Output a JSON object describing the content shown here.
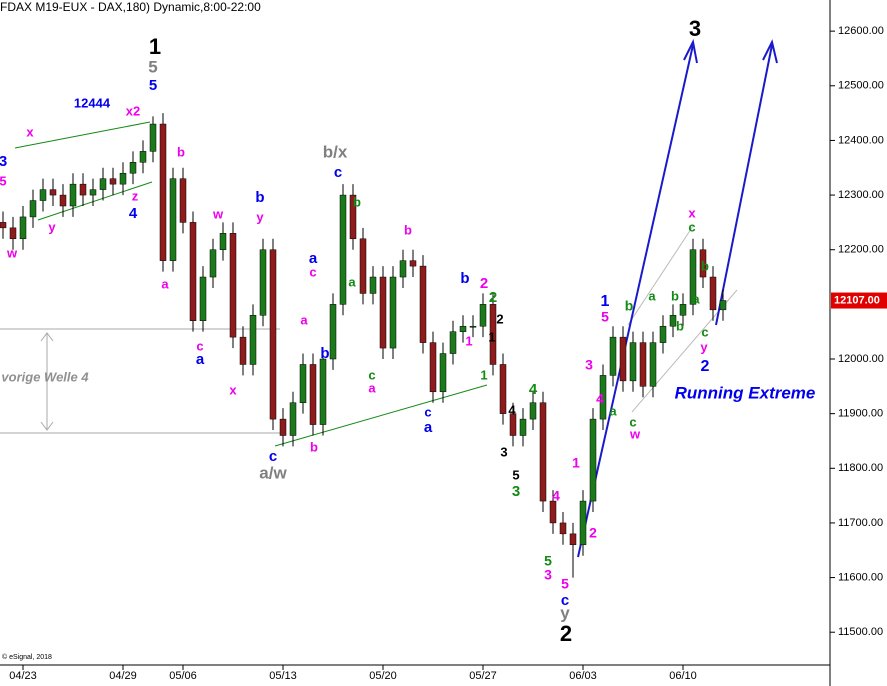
{
  "chart_data": {
    "type": "candlestick",
    "title": "(FDAX M19-EUX - DAX,180) Dynamic,8:00-22:00",
    "source": "© eSignal, 2018",
    "categories": [
      null,
      null,
      "04/23",
      null,
      null,
      null,
      null,
      null,
      null,
      null,
      null,
      null,
      "04/29",
      null,
      null,
      null,
      null,
      null,
      "05/06",
      null,
      null,
      null,
      null,
      null,
      null,
      null,
      null,
      null,
      "05/13",
      null,
      null,
      null,
      null,
      null,
      null,
      null,
      null,
      null,
      "05/20",
      null,
      null,
      null,
      null,
      null,
      null,
      null,
      null,
      null,
      "05/27",
      null,
      null,
      null,
      null,
      null,
      null,
      null,
      null,
      null,
      "06/03",
      null,
      null,
      null,
      null,
      null,
      null,
      null,
      null,
      null,
      "06/10",
      null,
      null,
      null,
      null
    ],
    "open": [
      12250,
      12240,
      12220,
      12260,
      12290,
      12310,
      12300,
      12280,
      12320,
      12300,
      12310,
      12330,
      12320,
      12340,
      12360,
      12380,
      12430,
      12180,
      12330,
      12250,
      12070,
      12150,
      12200,
      12230,
      12040,
      11990,
      12080,
      12200,
      11890,
      11860,
      11920,
      11990,
      11880,
      12000,
      12100,
      12300,
      12220,
      12120,
      12150,
      12020,
      12150,
      12180,
      12170,
      12030,
      11940,
      12010,
      12050,
      12060,
      12060,
      12100,
      11990,
      11900,
      11860,
      11890,
      11920,
      11740,
      11700,
      11680,
      11660,
      11740,
      11890,
      11970,
      12040,
      11960,
      12030,
      11950,
      12030,
      12060,
      12080,
      12100,
      12200,
      12150,
      12090
    ],
    "high": [
      12270,
      12260,
      12280,
      12310,
      12330,
      12330,
      12320,
      12340,
      12340,
      12330,
      12350,
      12350,
      12360,
      12380,
      12400,
      12444,
      12450,
      12350,
      12350,
      12270,
      12170,
      12220,
      12250,
      12250,
      12060,
      12100,
      12220,
      12220,
      11910,
      11940,
      12010,
      12010,
      12020,
      12120,
      12320,
      12320,
      12240,
      12170,
      12170,
      12170,
      12200,
      12200,
      12190,
      12050,
      12030,
      12070,
      12080,
      12080,
      12120,
      12120,
      12010,
      11920,
      11910,
      11940,
      11940,
      11760,
      11720,
      11700,
      11760,
      11910,
      11990,
      12060,
      12060,
      12050,
      12050,
      12050,
      12080,
      12100,
      12120,
      12220,
      12220,
      12170,
      12127
    ],
    "low": [
      12220,
      12200,
      12200,
      12240,
      12270,
      12280,
      12260,
      12260,
      12280,
      12280,
      12290,
      12300,
      12300,
      12320,
      12340,
      12360,
      12160,
      12160,
      12230,
      12050,
      12050,
      12130,
      12180,
      12020,
      11970,
      11970,
      12060,
      11870,
      11840,
      11840,
      11900,
      11860,
      11860,
      11980,
      12080,
      12200,
      12100,
      12100,
      12000,
      12000,
      12130,
      12150,
      12010,
      11920,
      11920,
      11990,
      12030,
      12040,
      12040,
      11970,
      11880,
      11840,
      11840,
      11870,
      11720,
      11680,
      11660,
      11600,
      11640,
      11720,
      11870,
      11950,
      11940,
      11940,
      11930,
      11930,
      12010,
      12040,
      12060,
      12080,
      12130,
      12070,
      12070
    ],
    "close": [
      12240,
      12220,
      12260,
      12290,
      12310,
      12300,
      12280,
      12320,
      12300,
      12310,
      12330,
      12320,
      12340,
      12360,
      12380,
      12430,
      12180,
      12330,
      12250,
      12070,
      12150,
      12200,
      12230,
      12040,
      11990,
      12080,
      12200,
      11890,
      11860,
      11920,
      11990,
      11880,
      12000,
      12100,
      12300,
      12220,
      12120,
      12150,
      12020,
      12150,
      12180,
      12170,
      12030,
      11940,
      12010,
      12050,
      12060,
      12060,
      12100,
      11990,
      11900,
      11860,
      11890,
      11920,
      11740,
      11700,
      11680,
      11660,
      11740,
      11890,
      11970,
      12040,
      11960,
      12030,
      11950,
      12030,
      12060,
      12080,
      12100,
      12200,
      12150,
      12090,
      12107
    ],
    "up_color": "#1c7a1c",
    "down_color": "#8e1c1c",
    "ylim": [
      11440,
      12657
    ],
    "yticks": [
      {
        "value": 12600,
        "label": "12600.00"
      },
      {
        "value": 12500,
        "label": "12500.00"
      },
      {
        "value": 12400,
        "label": "12400.00"
      },
      {
        "value": 12300,
        "label": "12300.00"
      },
      {
        "value": 12200,
        "label": "12200.00"
      },
      {
        "value": 12000,
        "label": "12000.00"
      },
      {
        "value": 11900,
        "label": "11900.00"
      },
      {
        "value": 11800,
        "label": "11800.00"
      },
      {
        "value": 11700,
        "label": "11700.00"
      },
      {
        "value": 11600,
        "label": "11600.00"
      },
      {
        "value": 11500,
        "label": "11500.00"
      }
    ],
    "last_price": {
      "value": 12107,
      "label": "12107.00",
      "color": "#e00000"
    },
    "annotations": [
      {
        "text": "1",
        "color": "#000000"
      },
      {
        "text": "5",
        "color": "#808080"
      },
      {
        "text": "5",
        "color": "#0000ee"
      },
      {
        "text": "12444",
        "color": "#0000ee"
      },
      {
        "text": "x2",
        "color": "#ee00ee"
      },
      {
        "text": "x",
        "color": "#ee00ee"
      },
      {
        "text": "3",
        "color": "#0000ee"
      },
      {
        "text": "5",
        "color": "#ee00ee"
      },
      {
        "text": "z",
        "color": "#ee00ee"
      },
      {
        "text": "4",
        "color": "#0000ee"
      },
      {
        "text": "y",
        "color": "#ee00ee"
      },
      {
        "text": "w",
        "color": "#ee00ee"
      },
      {
        "text": "b",
        "color": "#ee00ee"
      },
      {
        "text": "w",
        "color": "#ee00ee"
      },
      {
        "text": "b",
        "color": "#0000ee"
      },
      {
        "text": "y",
        "color": "#ee00ee"
      },
      {
        "text": "a",
        "color": "#ee00ee"
      },
      {
        "text": "c",
        "color": "#ee00ee"
      },
      {
        "text": "a",
        "color": "#0000ee"
      },
      {
        "text": "x",
        "color": "#ee00ee"
      },
      {
        "text": "b/x",
        "color": "#808080"
      },
      {
        "text": "c",
        "color": "#0000ee"
      },
      {
        "text": "b",
        "color": "#138a13"
      },
      {
        "text": "a",
        "color": "#0000ee"
      },
      {
        "text": "c",
        "color": "#ee00ee"
      },
      {
        "text": "a",
        "color": "#ee00ee"
      },
      {
        "text": "b",
        "color": "#0000ee"
      },
      {
        "text": "a",
        "color": "#138a13"
      },
      {
        "text": "b",
        "color": "#ee00ee"
      },
      {
        "text": "c",
        "color": "#138a13"
      },
      {
        "text": "a",
        "color": "#ee00ee"
      },
      {
        "text": "b",
        "color": "#0000ee"
      },
      {
        "text": "2",
        "color": "#ee00ee"
      },
      {
        "text": "2",
        "color": "#138a13"
      },
      {
        "text": "2",
        "color": "#000000"
      },
      {
        "text": "1",
        "color": "#ee00ee"
      },
      {
        "text": "1",
        "color": "#000000"
      },
      {
        "text": "1",
        "color": "#138a13"
      },
      {
        "text": "4",
        "color": "#138a13"
      },
      {
        "text": "4",
        "color": "#000000"
      },
      {
        "text": "c",
        "color": "#0000ee"
      },
      {
        "text": "a",
        "color": "#0000ee"
      },
      {
        "text": "3",
        "color": "#000000"
      },
      {
        "text": "5",
        "color": "#000000"
      },
      {
        "text": "3",
        "color": "#138a13"
      },
      {
        "text": "c",
        "color": "#0000ee"
      },
      {
        "text": "a/w",
        "color": "#808080"
      },
      {
        "text": "b",
        "color": "#ee00ee"
      },
      {
        "text": "1",
        "color": "#ee00ee"
      },
      {
        "text": "4",
        "color": "#ee00ee"
      },
      {
        "text": "2",
        "color": "#ee00ee"
      },
      {
        "text": "5",
        "color": "#138a13"
      },
      {
        "text": "3",
        "color": "#ee00ee"
      },
      {
        "text": "5",
        "color": "#ee00ee"
      },
      {
        "text": "c",
        "color": "#0000ee"
      },
      {
        "text": "y",
        "color": "#808080"
      },
      {
        "text": "2",
        "color": "#000000"
      },
      {
        "text": "1",
        "color": "#0000ee"
      },
      {
        "text": "5",
        "color": "#ee00ee"
      },
      {
        "text": "3",
        "color": "#ee00ee"
      },
      {
        "text": "4",
        "color": "#ee00ee"
      },
      {
        "text": "a",
        "color": "#138a13"
      },
      {
        "text": "b",
        "color": "#138a13"
      },
      {
        "text": "a",
        "color": "#138a13"
      },
      {
        "text": "b",
        "color": "#138a13"
      },
      {
        "text": "b",
        "color": "#138a13"
      },
      {
        "text": "c",
        "color": "#138a13"
      },
      {
        "text": "w",
        "color": "#ee00ee"
      },
      {
        "text": "x",
        "color": "#ee00ee"
      },
      {
        "text": "c",
        "color": "#138a13"
      },
      {
        "text": "b",
        "color": "#138a13"
      },
      {
        "text": "a",
        "color": "#138a13"
      },
      {
        "text": "c",
        "color": "#138a13"
      },
      {
        "text": "y",
        "color": "#ee00ee"
      },
      {
        "text": "2",
        "color": "#0000ee"
      },
      {
        "text": "3",
        "color": "#000000"
      },
      {
        "text": "Running Extreme",
        "color": "#0000ee"
      },
      {
        "text": "vorige Welle 4",
        "color": "#909090"
      }
    ]
  }
}
